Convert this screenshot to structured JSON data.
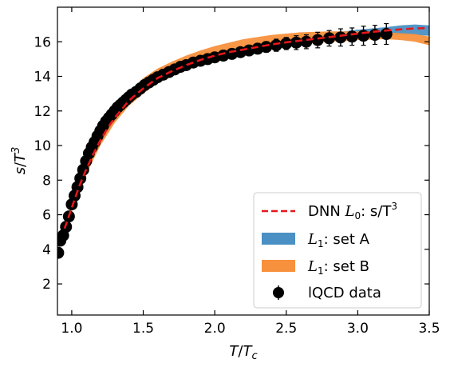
{
  "chart_data": {
    "type": "line",
    "xlabel": {
      "main": "T",
      "sep": "/",
      "main2": "T",
      "sub": "c"
    },
    "ylabel": {
      "main": "s",
      "sep": "/",
      "main2": "T",
      "sup": "3"
    },
    "xlim": [
      0.9,
      3.5
    ],
    "ylim": [
      0.2,
      18.0
    ],
    "xticks": [
      1.0,
      1.5,
      2.0,
      2.5,
      3.0,
      3.5
    ],
    "xtick_labels": [
      "1.0",
      "1.5",
      "2.0",
      "2.5",
      "3.0",
      "3.5"
    ],
    "yticks": [
      2,
      4,
      6,
      8,
      10,
      12,
      14,
      16
    ],
    "ytick_labels": [
      "2",
      "4",
      "6",
      "8",
      "10",
      "12",
      "14",
      "16"
    ],
    "grid": false,
    "legend_position": "lower-right",
    "series": [
      {
        "legend": {
          "prefix": "DNN ",
          "script": "L",
          "sub": "0",
          "rest": ": s/T",
          "sup": "3"
        },
        "style": "dashed-line",
        "color": "#e5171b",
        "x": [
          0.95,
          1.0,
          1.05,
          1.1,
          1.15,
          1.2,
          1.25,
          1.3,
          1.4,
          1.5,
          1.6,
          1.7,
          1.8,
          1.9,
          2.0,
          2.1,
          2.2,
          2.3,
          2.4,
          2.5,
          2.6,
          2.7,
          2.8,
          2.9,
          3.0,
          3.1,
          3.2,
          3.3,
          3.4,
          3.5
        ],
        "y": [
          5.2,
          6.4,
          7.6,
          8.6,
          9.5,
          10.3,
          11.0,
          11.6,
          12.6,
          13.3,
          13.9,
          14.3,
          14.65,
          14.95,
          15.2,
          15.4,
          15.55,
          15.7,
          15.85,
          15.97,
          16.07,
          16.17,
          16.27,
          16.37,
          16.47,
          16.57,
          16.65,
          16.72,
          16.77,
          16.8
        ]
      },
      {
        "legend": {
          "prefix": "",
          "script": "L",
          "sub": "1",
          "rest": ": set A",
          "sup": ""
        },
        "style": "band",
        "color": "#4a90c4",
        "x": [
          0.95,
          1.0,
          1.1,
          1.2,
          1.3,
          1.4,
          1.5,
          1.6,
          1.7,
          1.8,
          1.9,
          2.0,
          2.2,
          2.4,
          2.6,
          2.8,
          3.0,
          3.2,
          3.3,
          3.4,
          3.5
        ],
        "lower": [
          5.0,
          6.2,
          8.4,
          10.1,
          11.4,
          12.4,
          13.1,
          13.7,
          14.15,
          14.5,
          14.8,
          15.05,
          15.4,
          15.7,
          15.9,
          16.05,
          16.2,
          16.35,
          16.4,
          16.4,
          16.35
        ],
        "upper": [
          5.4,
          6.6,
          8.8,
          10.6,
          11.9,
          12.9,
          13.6,
          14.1,
          14.5,
          14.85,
          15.1,
          15.35,
          15.7,
          16.0,
          16.25,
          16.5,
          16.7,
          16.85,
          16.95,
          17.0,
          16.95
        ]
      },
      {
        "legend": {
          "prefix": "",
          "script": "L",
          "sub": "1",
          "rest": ": set B",
          "sup": ""
        },
        "style": "band",
        "color": "#f7913d",
        "x": [
          0.95,
          1.0,
          1.1,
          1.2,
          1.3,
          1.4,
          1.5,
          1.6,
          1.7,
          1.8,
          1.9,
          2.0,
          2.2,
          2.4,
          2.6,
          2.8,
          3.0,
          3.2,
          3.3,
          3.4,
          3.5
        ],
        "lower": [
          5.0,
          6.2,
          8.3,
          10.0,
          11.3,
          12.3,
          13.0,
          13.6,
          14.1,
          14.5,
          14.8,
          15.05,
          15.4,
          15.65,
          15.85,
          16.0,
          16.1,
          16.15,
          16.1,
          16.0,
          15.8
        ],
        "upper": [
          5.5,
          6.7,
          8.9,
          10.7,
          12.0,
          13.1,
          13.9,
          14.45,
          14.85,
          15.2,
          15.5,
          15.75,
          16.15,
          16.4,
          16.55,
          16.6,
          16.6,
          16.55,
          16.5,
          16.45,
          16.3
        ]
      },
      {
        "legend": {
          "prefix": "",
          "script": "",
          "sub": "",
          "rest": "lQCD data",
          "sup": ""
        },
        "style": "errorbar-points",
        "color": "#000000",
        "x": [
          0.905,
          0.92,
          0.94,
          0.96,
          0.98,
          1.0,
          1.02,
          1.04,
          1.06,
          1.08,
          1.1,
          1.12,
          1.14,
          1.16,
          1.18,
          1.2,
          1.22,
          1.24,
          1.26,
          1.28,
          1.3,
          1.32,
          1.34,
          1.36,
          1.38,
          1.4,
          1.42,
          1.45,
          1.48,
          1.51,
          1.54,
          1.57,
          1.6,
          1.64,
          1.68,
          1.72,
          1.76,
          1.8,
          1.85,
          1.9,
          1.95,
          2.0,
          2.06,
          2.12,
          2.18,
          2.24,
          2.3,
          2.36,
          2.43,
          2.5,
          2.57,
          2.64,
          2.72,
          2.8,
          2.88,
          2.96,
          3.04,
          3.12,
          3.2
        ],
        "y": [
          3.8,
          4.5,
          4.8,
          5.3,
          5.9,
          6.6,
          7.1,
          7.6,
          8.1,
          8.6,
          9.1,
          9.55,
          9.9,
          10.2,
          10.55,
          10.85,
          11.15,
          11.4,
          11.6,
          11.8,
          12.0,
          12.2,
          12.35,
          12.5,
          12.65,
          12.8,
          12.95,
          13.1,
          13.3,
          13.5,
          13.65,
          13.8,
          13.95,
          14.1,
          14.25,
          14.4,
          14.55,
          14.65,
          14.8,
          14.9,
          15.0,
          15.1,
          15.2,
          15.3,
          15.4,
          15.5,
          15.6,
          15.7,
          15.8,
          15.9,
          15.95,
          16.0,
          16.1,
          16.2,
          16.25,
          16.3,
          16.35,
          16.4,
          16.45
        ],
        "yerr": [
          0.15,
          0.15,
          0.15,
          0.15,
          0.15,
          0.15,
          0.15,
          0.15,
          0.15,
          0.15,
          0.15,
          0.15,
          0.15,
          0.15,
          0.15,
          0.15,
          0.15,
          0.15,
          0.15,
          0.15,
          0.15,
          0.15,
          0.15,
          0.15,
          0.15,
          0.15,
          0.15,
          0.15,
          0.15,
          0.15,
          0.15,
          0.15,
          0.15,
          0.15,
          0.2,
          0.2,
          0.2,
          0.2,
          0.2,
          0.2,
          0.2,
          0.25,
          0.25,
          0.25,
          0.25,
          0.3,
          0.3,
          0.3,
          0.35,
          0.35,
          0.4,
          0.4,
          0.45,
          0.45,
          0.5,
          0.5,
          0.55,
          0.55,
          0.6
        ]
      }
    ]
  }
}
